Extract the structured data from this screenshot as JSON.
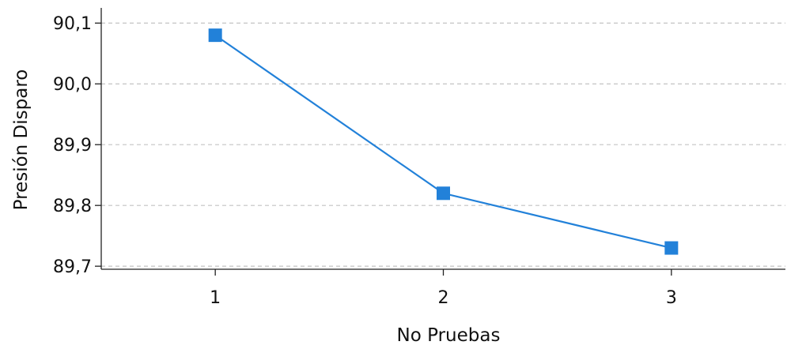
{
  "chart_data": {
    "type": "line",
    "title": "",
    "xlabel": "No Pruebas",
    "ylabel": "Presión Disparo",
    "x": [
      1,
      2,
      3
    ],
    "x_tick_labels": [
      "1",
      "2",
      "3"
    ],
    "series": [
      {
        "values": [
          90.08,
          89.82,
          89.73
        ],
        "color": "#2281d9",
        "marker": "square"
      }
    ],
    "xlim": [
      0.5,
      3.5
    ],
    "ylim": [
      89.695,
      90.125
    ],
    "y_ticks": [
      89.7,
      89.8,
      89.9,
      90.0,
      90.1
    ],
    "y_tick_labels": [
      "89,7",
      "89,8",
      "89,9",
      "90,0",
      "90,1"
    ],
    "grid": "horizontal dashed",
    "legend": "none"
  }
}
